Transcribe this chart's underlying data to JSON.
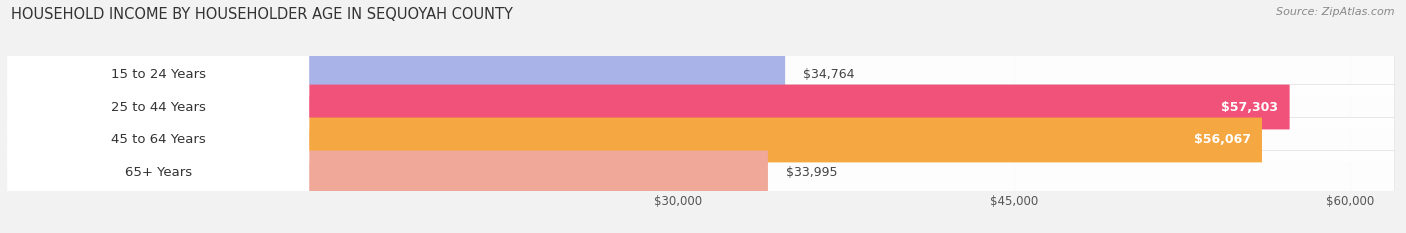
{
  "title": "HOUSEHOLD INCOME BY HOUSEHOLDER AGE IN SEQUOYAH COUNTY",
  "source": "Source: ZipAtlas.com",
  "categories": [
    "15 to 24 Years",
    "25 to 44 Years",
    "45 to 64 Years",
    "65+ Years"
  ],
  "values": [
    34764,
    57303,
    56067,
    33995
  ],
  "bar_colors": [
    "#aab3e8",
    "#f0527a",
    "#f5a742",
    "#f0a898"
  ],
  "value_labels": [
    "$34,764",
    "$57,303",
    "$56,067",
    "$33,995"
  ],
  "xmin": 0,
  "xmax": 62000,
  "xticks": [
    30000,
    45000,
    60000
  ],
  "xtick_labels": [
    "$30,000",
    "$45,000",
    "$60,000"
  ],
  "background_color": "#f2f2f2",
  "title_fontsize": 10.5,
  "source_fontsize": 8,
  "label_fontsize": 9.5,
  "value_fontsize": 9,
  "figsize": [
    14.06,
    2.33
  ],
  "dpi": 100
}
